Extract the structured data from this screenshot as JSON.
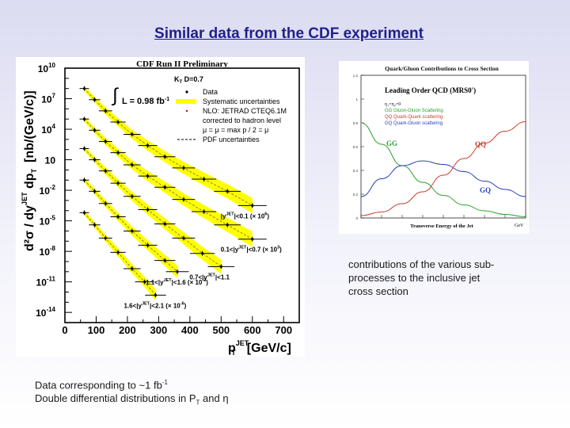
{
  "slide": {
    "title": "Similar data from the CDF experiment",
    "caption_right": "contributions of the various sub-processes to the inclusive jet cross section",
    "caption_bottom_1": "Data corresponding to  ~1 fb",
    "caption_bottom_1_sup": "-1",
    "caption_bottom_2": "Double differential distributions in P",
    "caption_bottom_2_sub": "T",
    "caption_bottom_2_tail": " and η"
  },
  "colors": {
    "band": "#ffff00",
    "axis": "#000000",
    "gg": "#2ca02c",
    "qq": "#d23b2b",
    "gq": "#2a3fbd",
    "title": "#1f1f8f"
  },
  "chart_data": [
    {
      "type": "scatter",
      "title": "CDF Run II Preliminary",
      "xlabel": "p",
      "xlabel_sup": "JET",
      "xlabel_sub": "T",
      "xlabel_unit": "[GeV/c]",
      "ylabel": "d²σ / dy",
      "ylabel_sup": "JET",
      "ylabel_mid": " dp",
      "ylabel_sub": "T",
      "ylabel_unit": "[nb/(GeV/c)]",
      "xlim": [
        0,
        750
      ],
      "ylim_log10": [
        -15,
        10
      ],
      "xticks": [
        "0",
        "100",
        "200",
        "300",
        "400",
        "500",
        "600",
        "700"
      ],
      "xtick_values": [
        0,
        100,
        200,
        300,
        400,
        500,
        600,
        700
      ],
      "yticks": [
        {
          "base": "10",
          "exp": "10",
          "v": 10
        },
        {
          "base": "10",
          "exp": "7",
          "v": 7
        },
        {
          "base": "10",
          "exp": "4",
          "v": 4
        },
        {
          "base": "10",
          "exp": "",
          "v": 1
        },
        {
          "base": "10",
          "exp": "-2",
          "v": -2
        },
        {
          "base": "10",
          "exp": "-5",
          "v": -5
        },
        {
          "base": "10",
          "exp": "-8",
          "v": -8
        },
        {
          "base": "10",
          "exp": "-11",
          "v": -11
        },
        {
          "base": "10",
          "exp": "-14",
          "v": -14
        }
      ],
      "legend": {
        "header": "K",
        "header_sub": "T",
        "header_tail": " D=0.7",
        "lumi": "L = 0.98 fb",
        "lumi_sup": "-1",
        "items": [
          {
            "label": "Data",
            "marker": "point"
          },
          {
            "label": "Systematic uncertainties",
            "marker": "band"
          },
          {
            "label": "NLO: JETRAD CTEQ6.1M",
            "marker": "dot"
          },
          {
            "label": "corrected to hadron level",
            "marker": "none"
          },
          {
            "label": "μ = μ = max p / 2 = μ",
            "marker": "none"
          },
          {
            "label": "PDF uncertainties",
            "marker": "dashed"
          }
        ]
      },
      "series": [
        {
          "name": "|y|<0.1 (× 10^6)",
          "label": "|y",
          "label_sup": "JET",
          "label_tail": "|<0.1 (× 10",
          "label_exp": "6",
          "label_end": ")",
          "x": [
            62,
            95,
            130,
            170,
            215,
            265,
            320,
            380,
            445,
            520,
            600
          ],
          "log10y": [
            8.0,
            6.9,
            5.8,
            4.7,
            3.5,
            2.4,
            1.3,
            0.2,
            -0.9,
            -2.1,
            -3.5
          ]
        },
        {
          "name": "0.1<|y|<0.7 (× 10^3)",
          "label": "0.1<|y",
          "label_sup": "JET",
          "label_tail": "|<0.7 (× 10",
          "label_exp": "3",
          "label_end": ")",
          "x": [
            62,
            95,
            130,
            170,
            215,
            265,
            320,
            380,
            445,
            520,
            600
          ],
          "log10y": [
            5.0,
            3.9,
            2.8,
            1.7,
            0.5,
            -0.6,
            -1.7,
            -2.9,
            -4.1,
            -5.4,
            -6.8
          ]
        },
        {
          "name": "0.7<|y|<1.1",
          "label": "0.7<|y",
          "label_sup": "JET",
          "label_tail": "|<1.1",
          "label_exp": "",
          "label_end": "",
          "x": [
            62,
            95,
            130,
            170,
            215,
            265,
            320,
            380,
            440,
            500
          ],
          "log10y": [
            2.1,
            1.0,
            -0.1,
            -1.3,
            -2.6,
            -3.9,
            -5.3,
            -6.7,
            -8.2,
            -9.5
          ]
        },
        {
          "name": "1.1<|y|<1.6 (× 10^-3)",
          "label": "1.1<|y",
          "label_sup": "JET",
          "label_tail": "|<1.6 (× 10",
          "label_exp": "-3",
          "label_end": ")",
          "x": [
            62,
            95,
            130,
            170,
            215,
            265,
            320,
            360
          ],
          "log10y": [
            -1.0,
            -2.1,
            -3.3,
            -4.6,
            -6.0,
            -7.4,
            -8.9,
            -10.0
          ]
        },
        {
          "name": "1.6<|y|<2.1 (× 10^-6)",
          "label": "1.6<|y",
          "label_sup": "JET",
          "label_tail": "|<2.1 (× 10",
          "label_exp": "-6",
          "label_end": ")",
          "x": [
            62,
            95,
            130,
            170,
            215,
            255,
            290
          ],
          "log10y": [
            -4.2,
            -5.4,
            -6.7,
            -8.1,
            -9.7,
            -11.0,
            -12.3
          ]
        }
      ]
    },
    {
      "type": "line",
      "title": "Quark/Gluon Contributions to Cross Section",
      "subtitle": "Leading Order QCD (MRS0')",
      "params": "η₁=η₂=0",
      "xlabel": "Transverse Energy of the Jet",
      "xlabel_unit": "GeV",
      "ylim": [
        0,
        1.2
      ],
      "yticks": [
        "1.2",
        "1",
        "0.8",
        "0.6",
        "0.4",
        "0.2",
        "0"
      ],
      "ytick_values": [
        1.2,
        1.0,
        0.8,
        0.6,
        0.4,
        0.2,
        0
      ],
      "xticks": [
        "0",
        "50",
        "100",
        "150",
        "200",
        "250",
        "300",
        "350",
        "400"
      ],
      "xtick_values": [
        0,
        50,
        100,
        150,
        200,
        250,
        300,
        350,
        400
      ],
      "legend": [
        {
          "key": "GG",
          "label": "Gluon-Gluon Scattering"
        },
        {
          "key": "QQ",
          "label": "Quark-Quark scattering"
        },
        {
          "key": "GQ",
          "label": "Quark-Gluon scattering"
        }
      ],
      "curve_labels": {
        "gg": "GG",
        "qq": "QQ",
        "gq": "GQ"
      },
      "x": [
        0,
        50,
        100,
        150,
        200,
        250,
        300,
        350,
        400
      ],
      "series": [
        {
          "name": "GG",
          "values": [
            0.8,
            0.62,
            0.44,
            0.3,
            0.19,
            0.11,
            0.06,
            0.03,
            0.01
          ]
        },
        {
          "name": "GQ",
          "values": [
            0.18,
            0.33,
            0.44,
            0.48,
            0.45,
            0.39,
            0.31,
            0.24,
            0.18
          ]
        },
        {
          "name": "QQ",
          "values": [
            0.02,
            0.05,
            0.12,
            0.22,
            0.36,
            0.5,
            0.63,
            0.73,
            0.81
          ]
        }
      ]
    }
  ]
}
